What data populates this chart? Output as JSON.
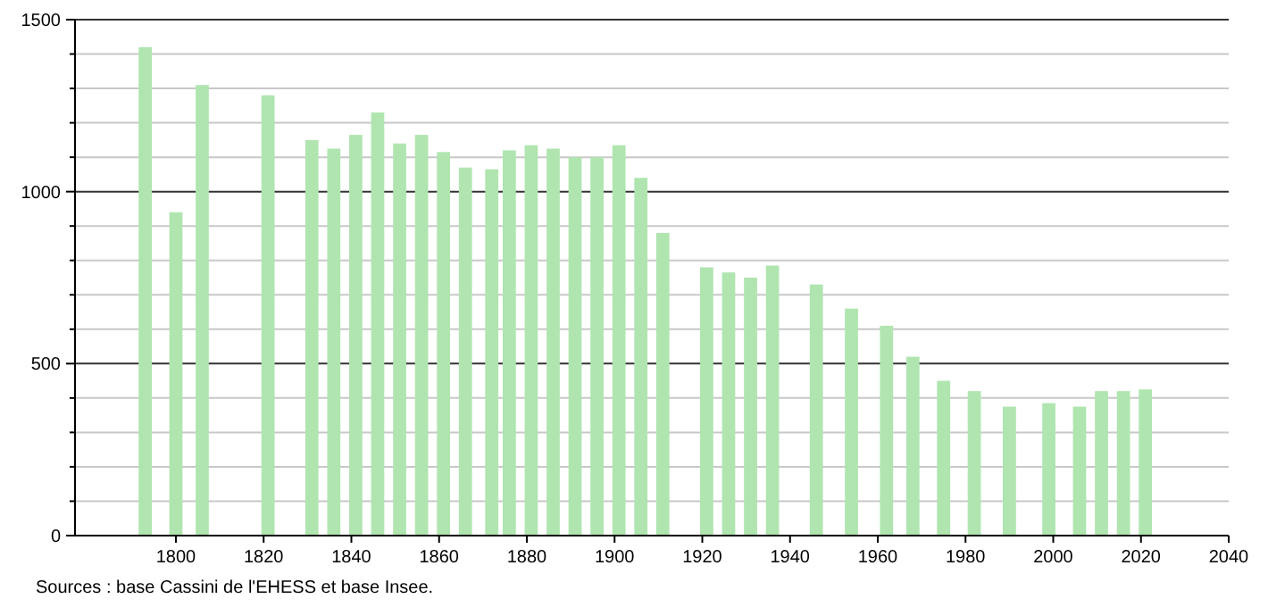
{
  "chart_data": {
    "type": "bar",
    "x": [
      1793,
      1800,
      1806,
      1821,
      1831,
      1836,
      1841,
      1846,
      1851,
      1856,
      1861,
      1866,
      1872,
      1876,
      1881,
      1886,
      1891,
      1896,
      1901,
      1906,
      1911,
      1921,
      1926,
      1931,
      1936,
      1946,
      1954,
      1962,
      1968,
      1975,
      1982,
      1990,
      1999,
      2006,
      2011,
      2016,
      2021
    ],
    "values": [
      1420,
      940,
      1310,
      1280,
      1150,
      1125,
      1165,
      1230,
      1140,
      1165,
      1115,
      1070,
      1065,
      1120,
      1135,
      1125,
      1100,
      1100,
      1135,
      1040,
      880,
      780,
      765,
      750,
      785,
      730,
      660,
      610,
      520,
      450,
      420,
      375,
      385,
      375,
      420,
      420,
      425
    ],
    "color": "#b0e5b0",
    "xlim": [
      1777,
      2040
    ],
    "xticks": [
      1800,
      1820,
      1840,
      1860,
      1880,
      1900,
      1920,
      1940,
      1960,
      1980,
      2000,
      2020,
      2040
    ],
    "ylim": [
      0,
      1500
    ],
    "yticks": [
      0,
      {
        "value": 100,
        "label": null
      },
      {
        "value": 200,
        "label": null
      },
      {
        "value": 300,
        "label": null
      },
      {
        "value": 400,
        "label": null
      },
      500,
      {
        "value": 600,
        "label": null
      },
      {
        "value": 700,
        "label": null
      },
      {
        "value": 800,
        "label": null
      },
      {
        "value": 900,
        "label": null
      },
      1000,
      {
        "value": 1100,
        "label": null
      },
      {
        "value": 1200,
        "label": null
      },
      {
        "value": 1300,
        "label": null
      },
      {
        "value": 1400,
        "label": null
      },
      1500
    ],
    "grid": true,
    "annotations": [
      "Sources : base Cassini de l'EHESS et base Insee."
    ]
  }
}
